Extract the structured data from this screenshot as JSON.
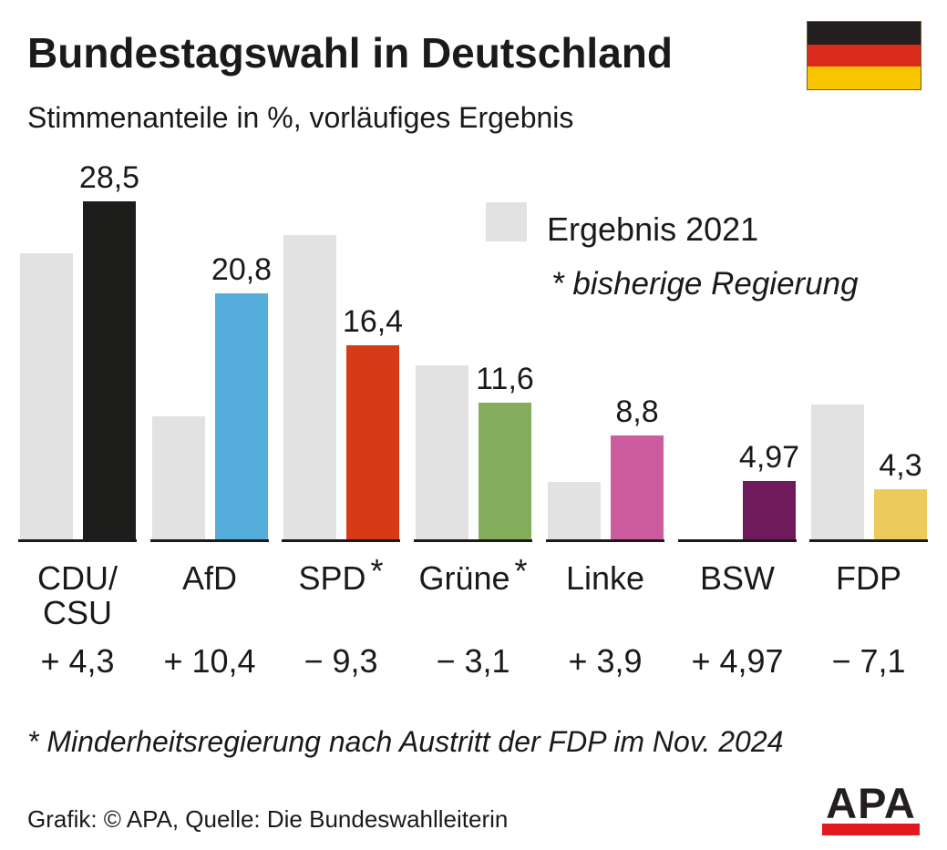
{
  "header": {
    "title": "Bundestagswahl in Deutschland",
    "subtitle": "Stimmenanteile in %, vorläufiges Ergebnis"
  },
  "flag": {
    "name": "germany-flag",
    "colors": [
      "#231f20",
      "#db2b1e",
      "#f6c500"
    ]
  },
  "legend": {
    "swatch_color": "#e2e2e2",
    "label": "Ergebnis 2021",
    "note": "* bisherige Regierung"
  },
  "chart_data": {
    "type": "bar",
    "title": "Bundestagswahl in Deutschland",
    "subtitle": "Stimmenanteile in %, vorläufiges Ergebnis",
    "unit": "%",
    "ylim": [
      0,
      30
    ],
    "grid": false,
    "legend_position": "top-right",
    "series_names": [
      "Ergebnis 2021",
      "vorläufiges Ergebnis"
    ],
    "categories": [
      "CDU/CSU",
      "AfD",
      "SPD *",
      "Grüne *",
      "Linke",
      "BSW",
      "FDP"
    ],
    "parties": [
      {
        "name_lines": [
          "CDU/",
          "CSU"
        ],
        "asterisk": false,
        "color": "#1d1d1b",
        "value_2021": 24.1,
        "value_2025": 28.5,
        "value_label": "28,5",
        "change_label": "+ 4,3"
      },
      {
        "name_lines": [
          "AfD"
        ],
        "asterisk": false,
        "color": "#55addb",
        "value_2021": 10.4,
        "value_2025": 20.8,
        "value_label": "20,8",
        "change_label": "+ 10,4"
      },
      {
        "name_lines": [
          "SPD"
        ],
        "asterisk": true,
        "color": "#d63a17",
        "value_2021": 25.7,
        "value_2025": 16.4,
        "value_label": "16,4",
        "change_label": "− 9,3"
      },
      {
        "name_lines": [
          "Grüne"
        ],
        "asterisk": true,
        "color": "#85ae5c",
        "value_2021": 14.7,
        "value_2025": 11.6,
        "value_label": "11,6",
        "change_label": "− 3,1"
      },
      {
        "name_lines": [
          "Linke"
        ],
        "asterisk": false,
        "color": "#cd5c9f",
        "value_2021": 4.9,
        "value_2025": 8.8,
        "value_label": "8,8",
        "change_label": "+ 3,9"
      },
      {
        "name_lines": [
          "BSW"
        ],
        "asterisk": false,
        "color": "#6f1b5b",
        "value_2021": null,
        "value_2025": 4.97,
        "value_label": "4,97",
        "change_label": "+ 4,97"
      },
      {
        "name_lines": [
          "FDP"
        ],
        "asterisk": false,
        "color": "#eccb5c",
        "value_2021": 11.4,
        "value_2025": 4.3,
        "value_label": "4,3",
        "change_label": "− 7,1"
      }
    ],
    "colors": {
      "bar_2021": "#e2e2e2",
      "baseline": "#1a1a1a",
      "text": "#1a1a1a"
    }
  },
  "footnote": "* Minderheitsregierung nach Austritt der FDP im Nov. 2024",
  "credit": "Grafik: © APA, Quelle: Die Bundeswahlleiterin",
  "logo": {
    "text": "APA",
    "bar_color": "#e2191f"
  }
}
